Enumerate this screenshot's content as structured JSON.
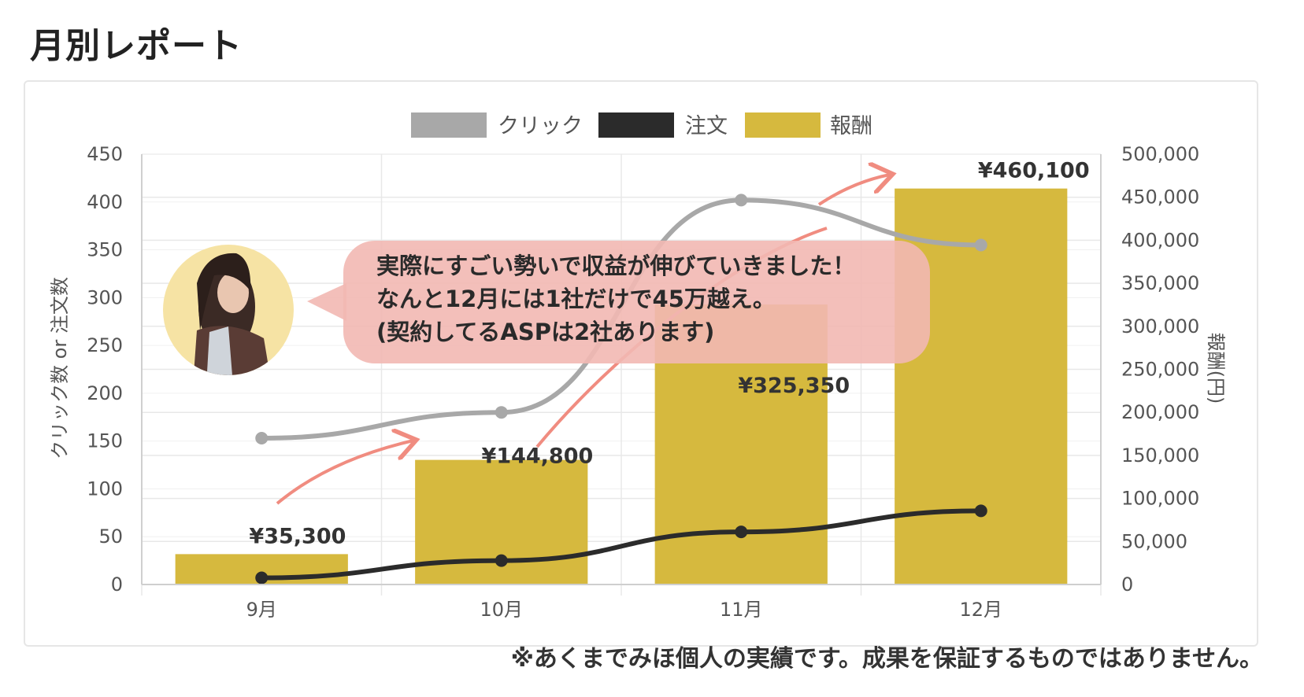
{
  "page": {
    "title": "月別レポート",
    "disclaimer": "※あくまでみほ個人の実績です。成果を保証するものではありません。"
  },
  "annotation": {
    "lines": [
      "実際にすごい勢いで収益が伸びていきました！",
      "なんと12月には1社だけで45万越え。",
      "(契約してるASPは2社あります)"
    ]
  },
  "colors": {
    "click": "#a8a8a8",
    "order": "#2b2b2b",
    "reward": "#d6b93e",
    "bubble": "#f2b8b3",
    "arrow": "#f08c80",
    "avatar_bg": "#f6e3a4"
  },
  "chart_data": {
    "type": "bar",
    "categories": [
      "9月",
      "10月",
      "11月",
      "12月"
    ],
    "series": [
      {
        "name": "クリック",
        "type": "line",
        "axis": "left",
        "values": [
          153,
          180,
          402,
          355
        ]
      },
      {
        "name": "注文",
        "type": "line",
        "axis": "left",
        "values": [
          7,
          25,
          55,
          77
        ]
      },
      {
        "name": "報酬",
        "type": "bar",
        "axis": "right",
        "values": [
          35300,
          144800,
          325350,
          460100
        ],
        "labels": [
          "¥35,300",
          "¥144,800",
          "¥325,350",
          "¥460,100"
        ]
      }
    ],
    "ylabel_left": "クリック数 or 注文数",
    "ylabel_right": "報酬(円)",
    "ylim_left": [
      0,
      450
    ],
    "ylim_right": [
      0,
      500000
    ],
    "yticks_left": [
      "0",
      "50",
      "100",
      "150",
      "200",
      "250",
      "300",
      "350",
      "400",
      "450"
    ],
    "yticks_right": [
      "0",
      "50,000",
      "100,000",
      "150,000",
      "200,000",
      "250,000",
      "300,000",
      "350,000",
      "400,000",
      "450,000",
      "500,000"
    ],
    "legend": [
      "クリック",
      "注文",
      "報酬"
    ],
    "legend_position": "top",
    "grid": true
  }
}
